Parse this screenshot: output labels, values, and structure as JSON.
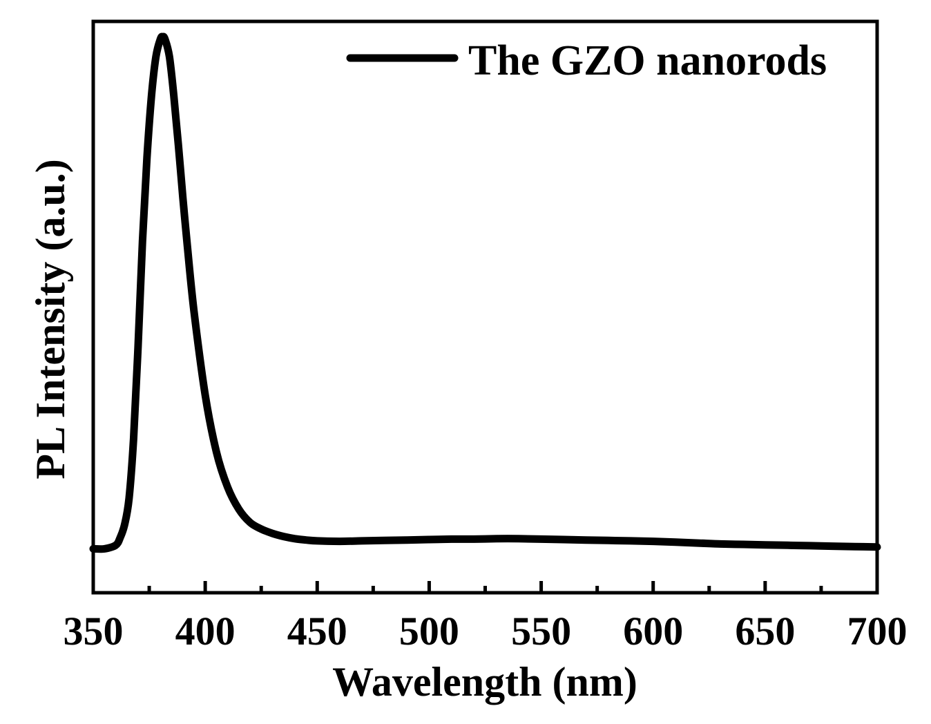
{
  "chart_data": {
    "type": "line",
    "title": "",
    "xlabel": "Wavelength (nm)",
    "ylabel": "PL Intensity (a.u.)",
    "xlim": [
      350,
      700
    ],
    "ylim": [
      0,
      1.3
    ],
    "xticks_major": [
      350,
      400,
      450,
      500,
      550,
      600,
      650,
      700
    ],
    "xtick_labels": [
      "350",
      "400",
      "450",
      "500",
      "550",
      "600",
      "650",
      "700"
    ],
    "xticks_minor": [
      375,
      425,
      475,
      525,
      575,
      625,
      675
    ],
    "yticks": [],
    "legend": {
      "position": "top-right",
      "entries": [
        "The GZO nanorods"
      ]
    },
    "grid": false,
    "series": [
      {
        "name": "The GZO nanorods",
        "color": "#000000",
        "x": [
          350,
          355,
          360,
          362,
          364,
          366,
          368,
          370,
          372,
          374,
          376,
          378,
          380,
          381,
          382,
          384,
          386,
          388,
          390,
          392,
          395,
          400,
          405,
          410,
          415,
          420,
          425,
          430,
          435,
          440,
          445,
          450,
          460,
          470,
          480,
          490,
          500,
          510,
          520,
          530,
          540,
          550,
          560,
          570,
          580,
          590,
          600,
          610,
          620,
          630,
          640,
          650,
          660,
          670,
          680,
          690,
          700
        ],
        "y": [
          0.1,
          0.1,
          0.108,
          0.125,
          0.155,
          0.215,
          0.35,
          0.56,
          0.8,
          0.99,
          1.13,
          1.22,
          1.26,
          1.265,
          1.26,
          1.22,
          1.13,
          1.02,
          0.9,
          0.79,
          0.64,
          0.45,
          0.32,
          0.24,
          0.19,
          0.16,
          0.145,
          0.135,
          0.128,
          0.123,
          0.12,
          0.118,
          0.117,
          0.118,
          0.119,
          0.12,
          0.121,
          0.122,
          0.122,
          0.123,
          0.123,
          0.122,
          0.121,
          0.12,
          0.119,
          0.118,
          0.117,
          0.115,
          0.113,
          0.111,
          0.11,
          0.109,
          0.108,
          0.107,
          0.106,
          0.105,
          0.104
        ]
      }
    ]
  }
}
